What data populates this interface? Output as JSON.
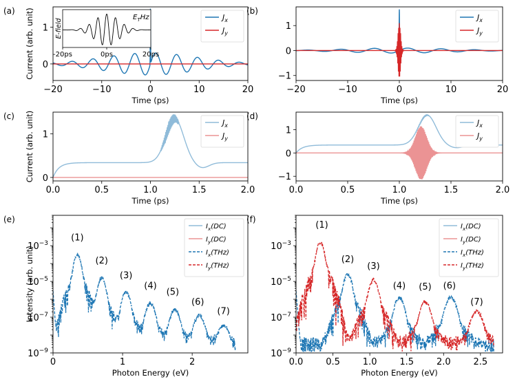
{
  "colors": {
    "jx": "#1f77b4",
    "jy": "#d62728",
    "jx_light": "#8fbbd9",
    "jy_light": "#eb9394"
  },
  "chart_data": [
    {
      "id": "a",
      "panel_label": "(a)",
      "type": "line",
      "xlabel": "Time (ps)",
      "ylabel": "Current (arb. unit)",
      "xlim": [
        -20,
        20
      ],
      "ylim": [
        -0.45,
        1.55
      ],
      "xticks": [
        -20,
        -10,
        0,
        10,
        20
      ],
      "xtick_labels": [
        "−20",
        "−10",
        "0",
        "10",
        "20"
      ],
      "yticks": [
        0,
        1
      ],
      "ytick_labels": [
        "0",
        "1"
      ],
      "legend": [
        "J_x",
        "J_y"
      ],
      "legend_position": "upper right",
      "series": [
        {
          "name": "J_x",
          "kind": "thz_current",
          "amplitude": 0.3,
          "period_ps": 4.3,
          "envelope_ps": 9.5,
          "spike_height": 1.5,
          "spike_time": 0
        },
        {
          "name": "J_y",
          "kind": "flat",
          "value": 0.0
        }
      ],
      "inset": {
        "title": "E_THz",
        "ylabel": "E-field",
        "xlim": [
          -20,
          20
        ],
        "xticks": [
          -20,
          0,
          20
        ],
        "xtick_labels": [
          "-20ps",
          "0ps",
          "20ps"
        ],
        "pulse": {
          "period_ps": 4.0,
          "envelope_ps": 5.5
        }
      }
    },
    {
      "id": "b",
      "panel_label": "(b)",
      "type": "line",
      "xlabel": "Time (ps)",
      "ylabel": "",
      "xlim": [
        -20,
        20
      ],
      "ylim": [
        -1.2,
        1.75
      ],
      "xticks": [
        -20,
        -10,
        0,
        10,
        20
      ],
      "xtick_labels": [
        "−20",
        "−10",
        "0",
        "10",
        "20"
      ],
      "yticks": [
        -1,
        0,
        1
      ],
      "ytick_labels": [
        "−1",
        "0",
        "1"
      ],
      "legend": [
        "J_x",
        "J_y"
      ],
      "legend_position": "upper right",
      "series": [
        {
          "name": "J_x",
          "kind": "thz_current",
          "amplitude": 0.1,
          "period_ps": 6.5,
          "envelope_ps": 10,
          "spike_height": 1.65,
          "spike_time": 0
        },
        {
          "name": "J_y",
          "kind": "burst_y",
          "amplitude": 1.1,
          "center": 0,
          "width": 0.25
        }
      ]
    },
    {
      "id": "c",
      "panel_label": "(c)",
      "type": "line",
      "xlabel": "Time (ps)",
      "ylabel": "Current (arb. unit)",
      "xlim": [
        0,
        2
      ],
      "ylim": [
        -0.08,
        1.5
      ],
      "xticks": [
        0,
        0.5,
        1,
        1.5,
        2
      ],
      "xtick_labels": [
        "0.0",
        "0.5",
        "1.0",
        "1.5",
        "2.0"
      ],
      "yticks": [
        0,
        1
      ],
      "ytick_labels": [
        "0",
        "1"
      ],
      "legend": [
        "J_x",
        "J_y"
      ],
      "legend_position": "upper right",
      "series": [
        {
          "name": "J_x",
          "kind": "dc_x",
          "baseline": 0.34,
          "peak": 1.35,
          "center": 1.25,
          "width": 0.09,
          "osc_amp": 0.13,
          "osc_start": 1.1,
          "osc_end": 1.3
        },
        {
          "name": "J_y",
          "kind": "flat",
          "value": 0.0
        }
      ]
    },
    {
      "id": "d",
      "panel_label": "(d)",
      "type": "line",
      "xlabel": "Time (ps)",
      "ylabel": "",
      "xlim": [
        0,
        2
      ],
      "ylim": [
        -1.2,
        1.75
      ],
      "xticks": [
        0,
        0.5,
        1,
        1.5,
        2
      ],
      "xtick_labels": [
        "0.0",
        "0.5",
        "1.0",
        "1.5",
        "2.0"
      ],
      "yticks": [
        -1,
        0,
        1
      ],
      "ytick_labels": [
        "−1",
        "0",
        "1"
      ],
      "legend": [
        "J_x",
        "J_y"
      ],
      "legend_position": "upper right",
      "series": [
        {
          "name": "J_x",
          "kind": "dc_x",
          "baseline": 0.34,
          "peak": 1.62,
          "center": 1.27,
          "width": 0.085,
          "osc_amp": 0.03,
          "osc_start": 1.15,
          "osc_end": 1.3
        },
        {
          "name": "J_y",
          "kind": "burst_dc",
          "amplitude": 1.15,
          "center": 1.21,
          "width": 0.055
        }
      ]
    },
    {
      "id": "e",
      "panel_label": "(e)",
      "type": "line",
      "xlabel": "Photon Energy (eV)",
      "ylabel": "Intensity (arb. unit)",
      "xscale": "linear",
      "yscale": "log",
      "xlim": [
        0,
        2.8
      ],
      "ylim": [
        1e-09,
        0.05
      ],
      "xticks": [
        0,
        1,
        2
      ],
      "xtick_labels": [
        "0",
        "1",
        "2"
      ],
      "legend": [
        "I_x(DC)",
        "I_y(DC)",
        "I_x(THz)",
        "I_y(THz)"
      ],
      "legend_position": "upper right",
      "spectrum": {
        "noise_floor": 3e-09,
        "cutoff": 2.62,
        "peaks_x": [
          [
            0.35,
            0.0003
          ],
          [
            0.7,
            1.5e-05
          ],
          [
            1.05,
            2.5e-06
          ],
          [
            1.4,
            6e-07
          ],
          [
            1.75,
            2.5e-07
          ],
          [
            2.1,
            1.2e-07
          ],
          [
            2.45,
            3e-08
          ]
        ],
        "peaks_y": []
      },
      "annotations": [
        {
          "text": "(1)",
          "x": 0.35,
          "y": 0.002
        },
        {
          "text": "(2)",
          "x": 0.7,
          "y": 0.0001
        },
        {
          "text": "(3)",
          "x": 1.05,
          "y": 1.5e-05
        },
        {
          "text": "(4)",
          "x": 1.4,
          "y": 4e-06
        },
        {
          "text": "(5)",
          "x": 1.72,
          "y": 1.8e-06
        },
        {
          "text": "(6)",
          "x": 2.08,
          "y": 5e-07
        },
        {
          "text": "(7)",
          "x": 2.45,
          "y": 1.5e-07
        }
      ]
    },
    {
      "id": "f",
      "panel_label": "(f)",
      "type": "line",
      "xlabel": "Photon Energy (eV)",
      "ylabel": "",
      "xscale": "linear",
      "yscale": "log",
      "xlim": [
        0,
        2.8
      ],
      "ylim": [
        1e-09,
        0.05
      ],
      "xticks": [
        0,
        0.5,
        1,
        1.5,
        2,
        2.5
      ],
      "xtick_labels": [
        "0.0",
        "0.5",
        "1.0",
        "1.5",
        "2.0",
        "2.5"
      ],
      "legend": [
        "I_x(DC)",
        "I_y(DC)",
        "I_x(THz)",
        "I_y(THz)"
      ],
      "legend_position": "upper right",
      "spectrum": {
        "noise_floor": 3e-09,
        "cutoff": 2.68,
        "peaks_x": [
          [
            0.7,
            2.5e-05
          ],
          [
            1.4,
            1.2e-06
          ],
          [
            2.1,
            1.2e-06
          ]
        ],
        "peaks_y": [
          [
            0.33,
            0.0015
          ],
          [
            1.05,
            1.2e-05
          ],
          [
            1.75,
            7e-07
          ],
          [
            2.45,
            2e-07
          ]
        ]
      },
      "annotations": [
        {
          "text": "(1)",
          "x": 0.35,
          "y": 0.01
        },
        {
          "text": "(2)",
          "x": 0.7,
          "y": 0.00012
        },
        {
          "text": "(3)",
          "x": 1.05,
          "y": 5e-05
        },
        {
          "text": "(4)",
          "x": 1.4,
          "y": 4e-06
        },
        {
          "text": "(5)",
          "x": 1.75,
          "y": 3.5e-06
        },
        {
          "text": "(6)",
          "x": 2.08,
          "y": 4e-06
        },
        {
          "text": "(7)",
          "x": 2.45,
          "y": 5e-07
        }
      ]
    }
  ]
}
